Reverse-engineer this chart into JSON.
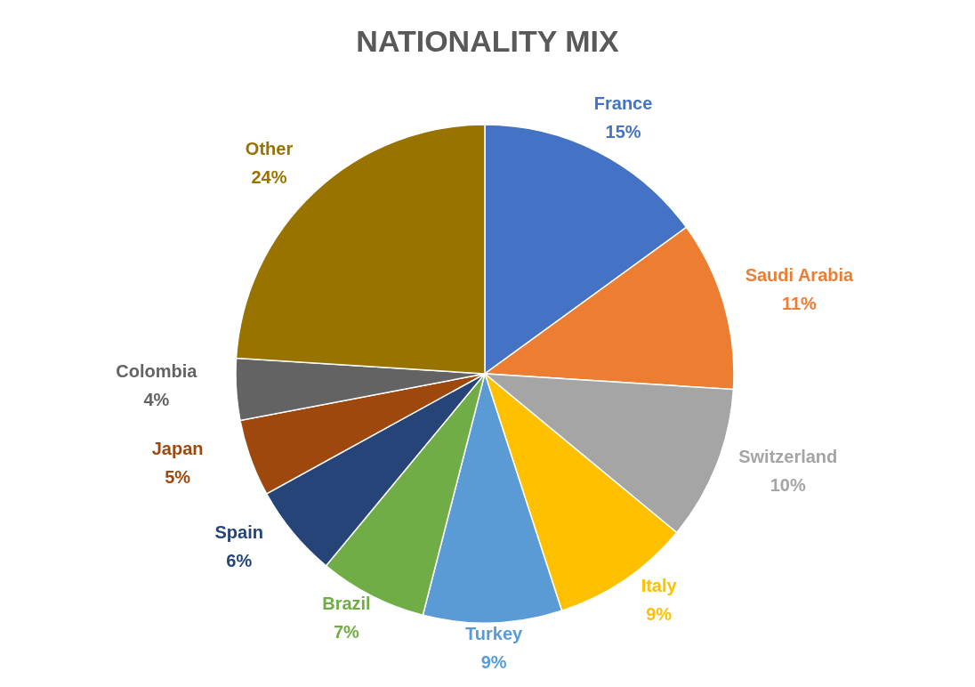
{
  "chart_data": {
    "type": "pie",
    "title": "NATIONALITY MIX",
    "categories": [
      "France",
      "Saudi Arabia",
      "Switzerland",
      "Italy",
      "Turkey",
      "Brazil",
      "Spain",
      "Japan",
      "Colombia",
      "Other"
    ],
    "values": [
      15,
      11,
      10,
      9,
      9,
      7,
      6,
      5,
      4,
      24
    ],
    "value_labels": [
      "15%",
      "11%",
      "10%",
      "9%",
      "9%",
      "7%",
      "6%",
      "5%",
      "4%",
      "24%"
    ],
    "colors": [
      "#4472c4",
      "#ed7d31",
      "#a5a5a5",
      "#ffc000",
      "#5b9bd5",
      "#70ad47",
      "#264478",
      "#9e480e",
      "#636363",
      "#997300"
    ],
    "legend": false
  }
}
